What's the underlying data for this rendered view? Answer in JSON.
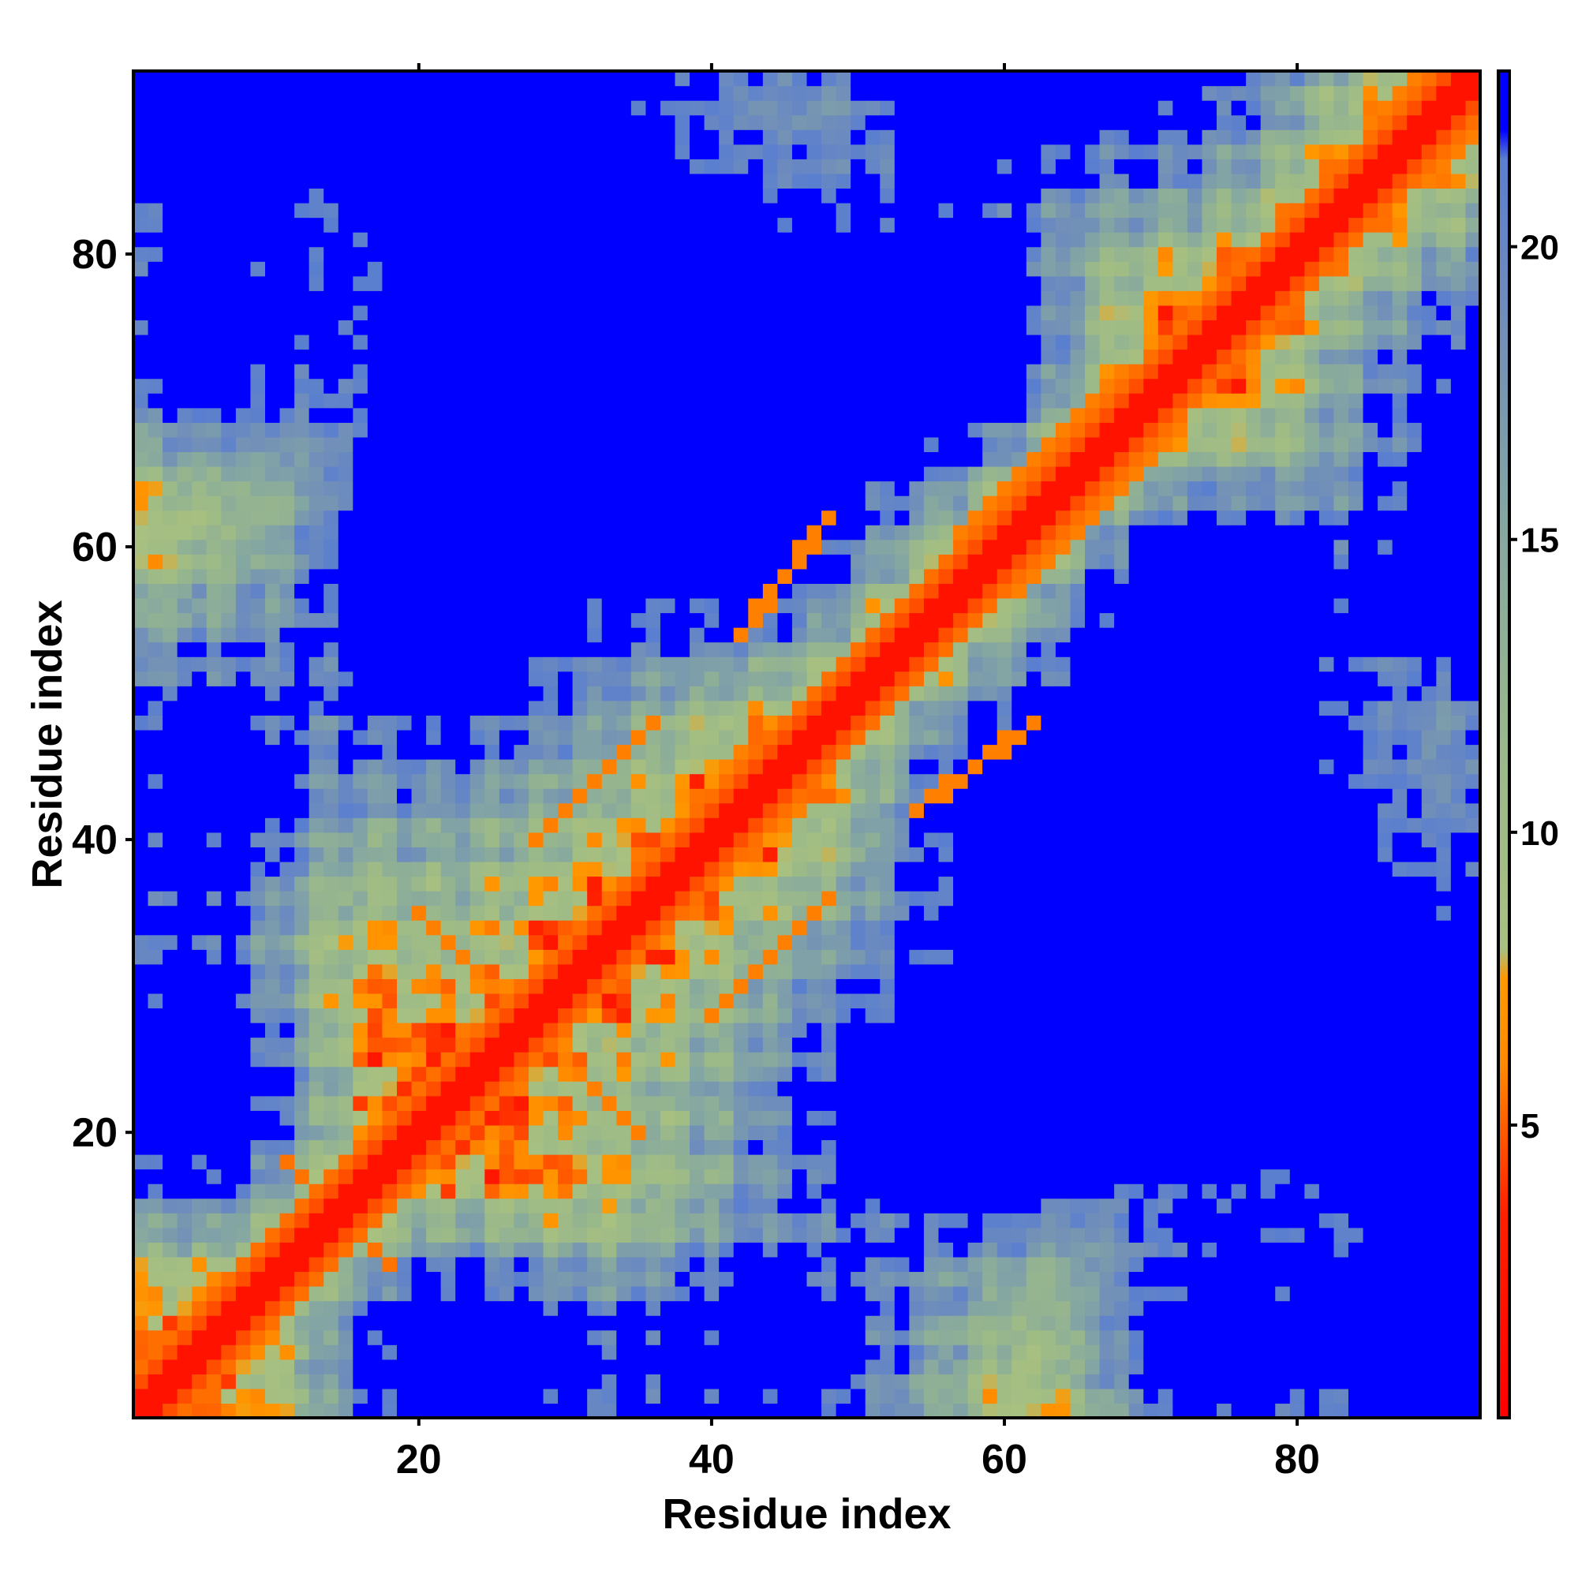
{
  "chart_data": {
    "type": "heatmap",
    "title": "",
    "xlabel": "Residue index",
    "ylabel": "Residue index",
    "n_residues": 92,
    "xlim": [
      0.5,
      92.5
    ],
    "ylim": [
      0.5,
      92.5
    ],
    "x_ticks": [
      20,
      40,
      60,
      80
    ],
    "y_ticks": [
      20,
      40,
      60,
      80
    ],
    "colorbar": {
      "ticks": [
        5,
        10,
        15,
        20
      ],
      "range": [
        0,
        23
      ],
      "stops": [
        {
          "value": 0,
          "color": "#ff0000"
        },
        {
          "value": 3.5,
          "color": "#ff2000"
        },
        {
          "value": 6,
          "color": "#ff8800"
        },
        {
          "value": 7.5,
          "color": "#ff9900"
        },
        {
          "value": 8,
          "color": "#a8c080"
        },
        {
          "value": 11,
          "color": "#9cba88"
        },
        {
          "value": 15,
          "color": "#86a8a0"
        },
        {
          "value": 19,
          "color": "#6e8cbc"
        },
        {
          "value": 21.5,
          "color": "#5a7ed0"
        },
        {
          "value": 22,
          "color": "#0000ff"
        },
        {
          "value": 23,
          "color": "#0000ff"
        }
      ]
    },
    "contact_cutoff": 21.5,
    "diagonal_band_value": 2,
    "structure_note_values": {
      "helix_parallel_offsets": [
        3,
        4
      ],
      "strand_pairs": [
        {
          "a": [
            11,
            18
          ],
          "b": [
            18,
            11
          ],
          "value": 5.5
        },
        {
          "a": [
            20,
            35
          ],
          "b": [
            35,
            20
          ],
          "value": 5.8
        },
        {
          "a": [
            28,
            36
          ],
          "b": [
            40,
            48
          ],
          "value": 5.8
        },
        {
          "a": [
            42,
            48
          ],
          "b": [
            54,
            62
          ],
          "value": 5.8
        },
        {
          "a": [
            55,
            68
          ],
          "b": [
            58,
            72
          ],
          "value": 5.8
        },
        {
          "a": [
            75,
            88
          ],
          "b": [
            76,
            92
          ],
          "value": 5.8
        }
      ]
    }
  }
}
